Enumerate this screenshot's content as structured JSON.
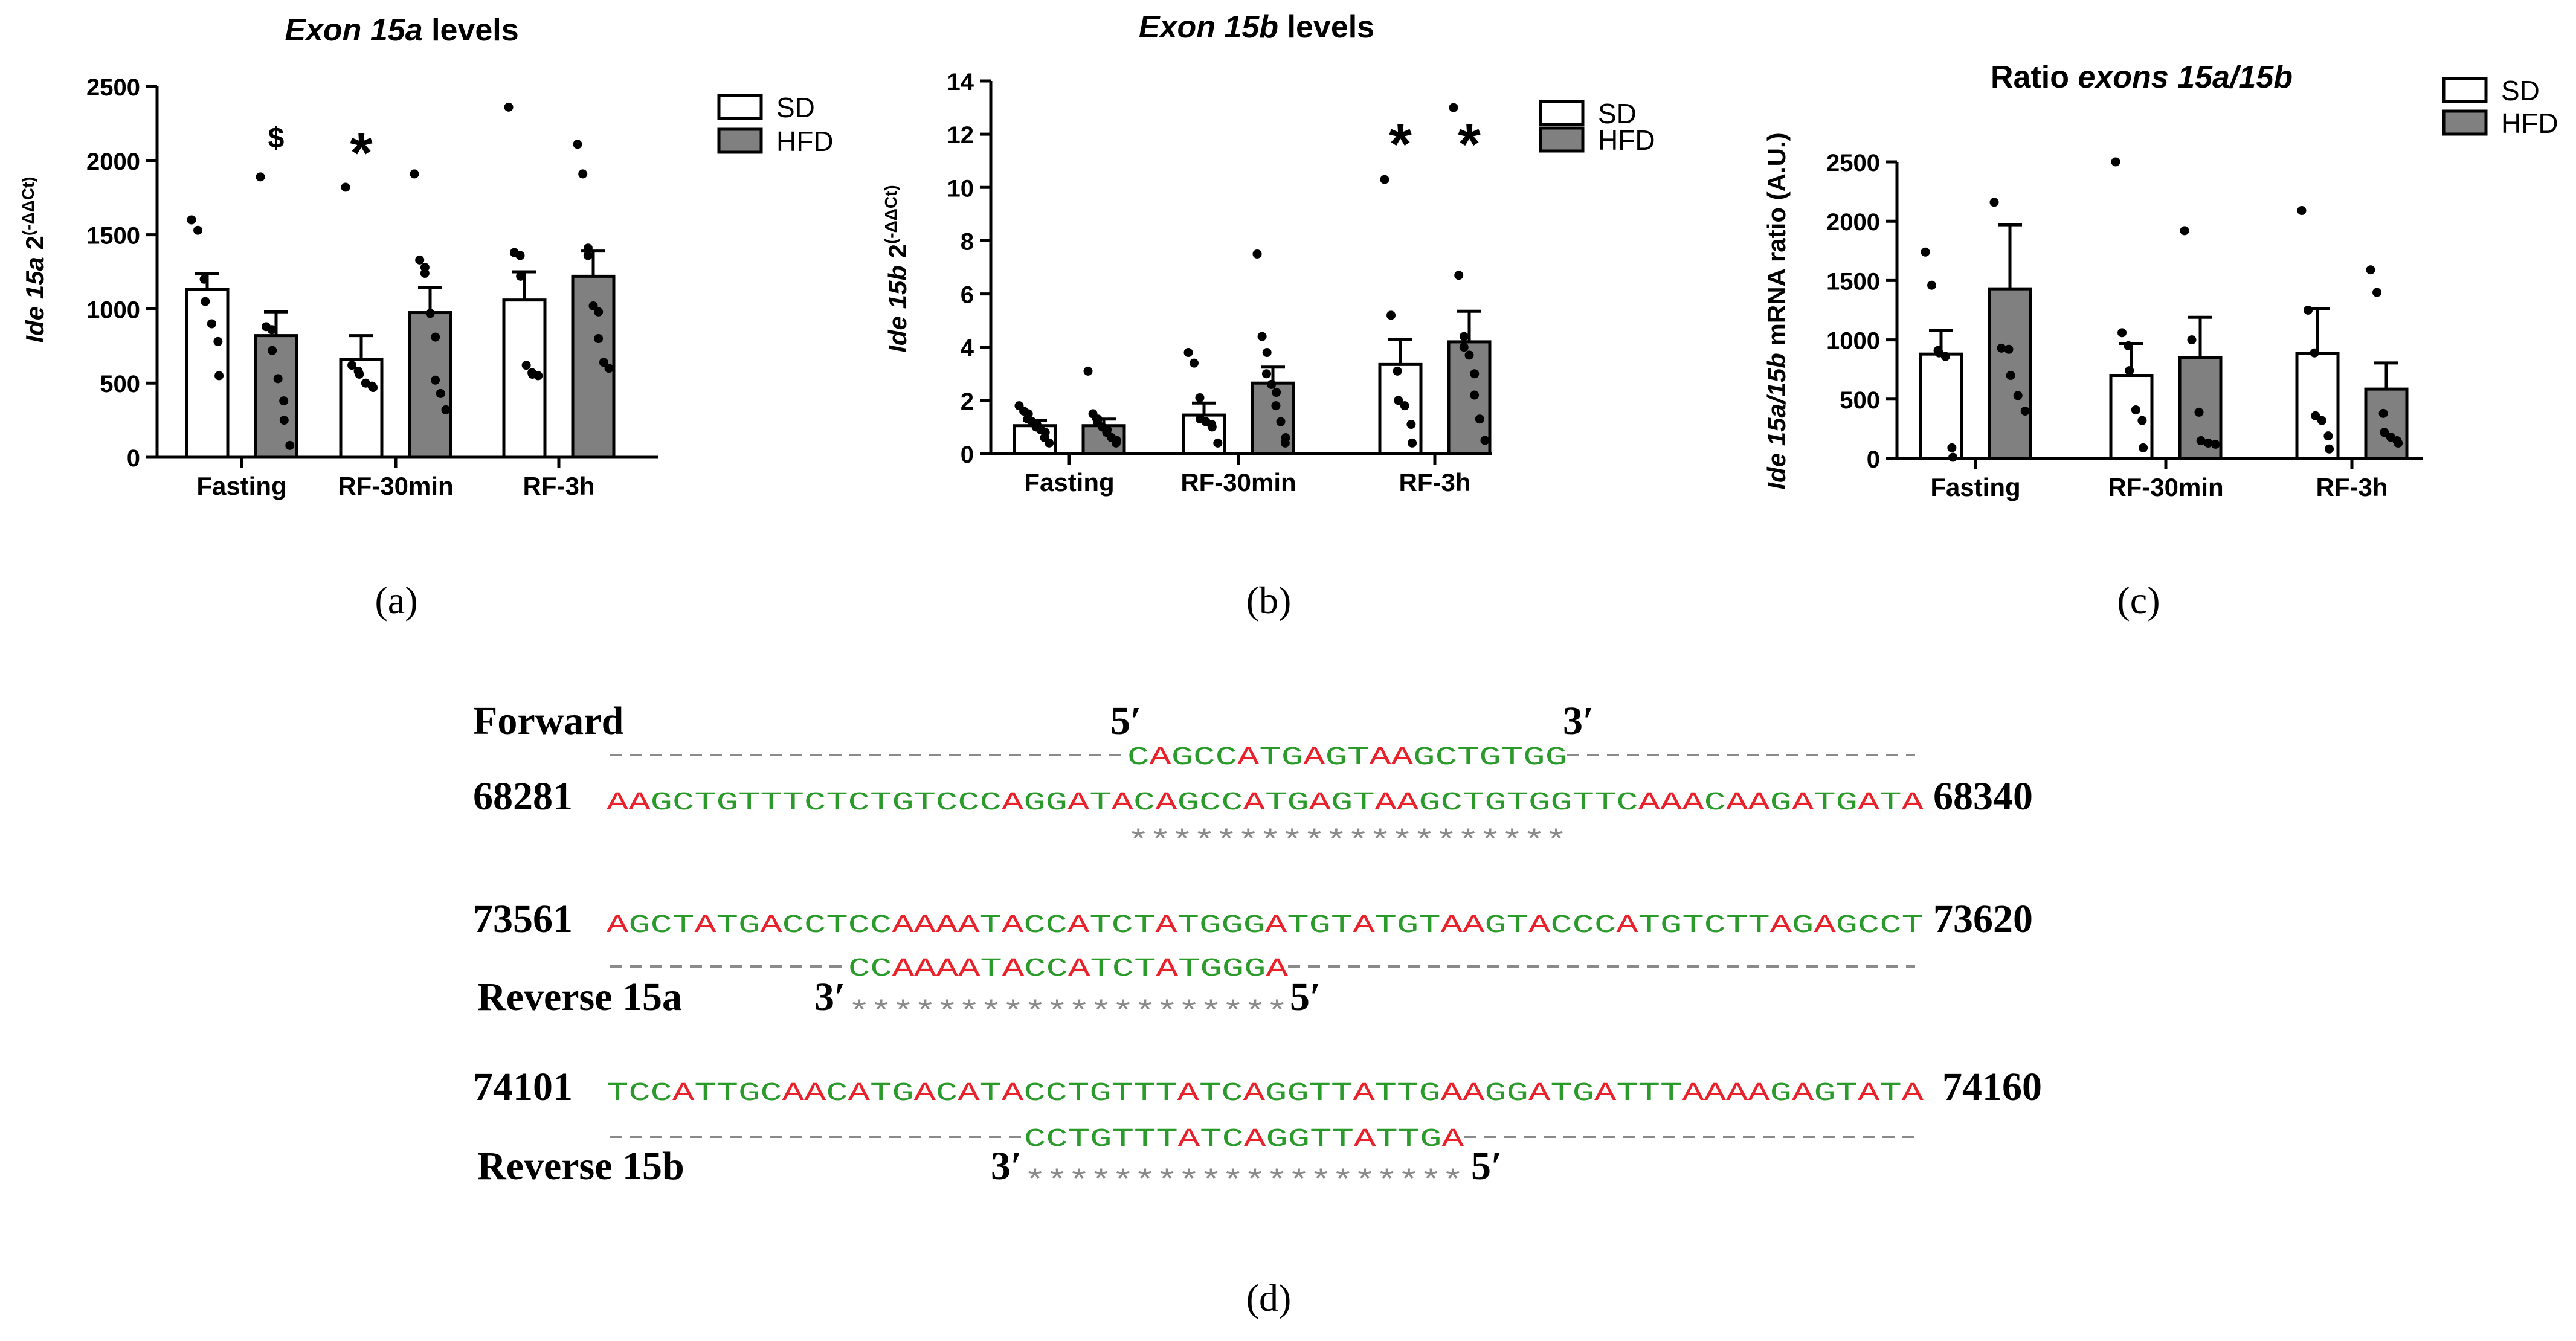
{
  "charts": [
    {
      "panel": "(a)",
      "title_italic": "Exon 15a",
      "title_rest": " levels",
      "ylabel_italic": "Ide 15a",
      "ylabel_rest": " 2",
      "ylabel_sup": "(-ΔΔCt)",
      "legend": [
        "SD",
        "HFD"
      ]
    },
    {
      "panel": "(b)",
      "title_italic": "Exon 15b",
      "title_rest": " levels",
      "ylabel_italic": "Ide 15b",
      "ylabel_rest": " 2",
      "ylabel_sup": "(-ΔΔCt)",
      "legend": [
        "SD",
        "HFD"
      ]
    },
    {
      "panel": "(c)",
      "title_plain": "Ratio ",
      "title_italic": "exons 15a/15b",
      "ylabel_italic": "Ide 15a/15b",
      "ylabel_rest": " mRNA ratio (A.U.)",
      "legend": [
        "SD",
        "HFD"
      ]
    }
  ],
  "chart_data": [
    {
      "type": "bar",
      "categories": [
        "Fasting",
        "RF-30min",
        "RF-3h"
      ],
      "ylim": [
        0,
        2500
      ],
      "yticks": [
        0,
        500,
        1000,
        1500,
        2000,
        2500
      ],
      "series": [
        {
          "name": "SD",
          "color": "#ffffff",
          "values": [
            1130,
            660,
            1060
          ],
          "errors": [
            110,
            160,
            190
          ],
          "points": [
            [
              1600,
              1530,
              1200,
              1050,
              900,
              780,
              550
            ],
            [
              1820,
              620,
              580,
              560,
              500,
              480,
              470
            ],
            [
              2360,
              1380,
              1360,
              1220,
              620,
              570,
              560,
              550
            ]
          ]
        },
        {
          "name": "HFD",
          "color": "#808080",
          "values": [
            820,
            975,
            1220
          ],
          "errors": [
            160,
            170,
            170
          ],
          "points": [
            [
              1890,
              880,
              860,
              720,
              530,
              380,
              250,
              80
            ],
            [
              1910,
              1330,
              1280,
              1240,
              970,
              810,
              520,
              430,
              320
            ],
            [
              2110,
              1910,
              1410,
              1360,
              1020,
              980,
              800,
              640,
              600
            ]
          ]
        }
      ],
      "annotations": [
        {
          "text": "$",
          "category": "Fasting",
          "series": "HFD",
          "y": 2160
        },
        {
          "text": "*",
          "category": "RF-30min",
          "series": "SD",
          "y": 2100
        }
      ]
    },
    {
      "type": "bar",
      "categories": [
        "Fasting",
        "RF-30min",
        "RF-3h"
      ],
      "ylim": [
        0,
        14
      ],
      "yticks": [
        0,
        2,
        4,
        6,
        8,
        10,
        12,
        14
      ],
      "series": [
        {
          "name": "SD",
          "color": "#ffffff",
          "values": [
            1.05,
            1.45,
            3.35
          ],
          "errors": [
            0.2,
            0.45,
            0.95
          ],
          "points": [
            [
              1.8,
              1.6,
              1.5,
              1.3,
              1.2,
              1.1,
              1.0,
              0.9,
              0.8,
              0.6,
              0.4
            ],
            [
              3.8,
              3.4,
              2.1,
              1.3,
              1.2,
              1.1,
              1.0,
              0.4
            ],
            [
              10.3,
              5.2,
              3.1,
              2.0,
              1.8,
              1.1,
              0.4
            ]
          ]
        },
        {
          "name": "HFD",
          "color": "#808080",
          "values": [
            1.05,
            2.65,
            4.2
          ],
          "errors": [
            0.25,
            0.6,
            1.15
          ],
          "points": [
            [
              3.1,
              1.5,
              1.3,
              1.2,
              1.0,
              0.9,
              0.8,
              0.6,
              0.5,
              0.4
            ],
            [
              7.5,
              4.4,
              3.8,
              3.0,
              2.6,
              2.3,
              1.8,
              1.2,
              0.6,
              0.4
            ],
            [
              13.0,
              6.7,
              4.4,
              4.0,
              3.7,
              3.0,
              2.2,
              1.3,
              0.5
            ]
          ]
        }
      ],
      "annotations": [
        {
          "text": "*",
          "category": "RF-3h",
          "series": "SD",
          "y": 11.9
        },
        {
          "text": "*",
          "category": "RF-3h",
          "series": "HFD",
          "y": 11.9
        }
      ]
    },
    {
      "type": "bar",
      "categories": [
        "Fasting",
        "RF-30min",
        "RF-3h"
      ],
      "ylim": [
        0,
        2500
      ],
      "yticks": [
        0,
        500,
        1000,
        1500,
        2000,
        2500
      ],
      "series": [
        {
          "name": "SD",
          "color": "#ffffff",
          "values": [
            880,
            700,
            885
          ],
          "errors": [
            200,
            270,
            380
          ],
          "points": [
            [
              1740,
              1460,
              910,
              890,
              860,
              90,
              10
            ],
            [
              2500,
              1060,
              950,
              740,
              410,
              320,
              90
            ],
            [
              2090,
              1250,
              890,
              360,
              320,
              190,
              80
            ]
          ]
        },
        {
          "name": "HFD",
          "color": "#808080",
          "values": [
            1430,
            850,
            585
          ],
          "errors": [
            540,
            340,
            220
          ],
          "points": [
            [
              2160,
              930,
              920,
              700,
              530,
              400
            ],
            [
              1920,
              1000,
              390,
              150,
              130,
              120
            ],
            [
              1590,
              1400,
              380,
              220,
              180,
              150,
              130
            ]
          ]
        }
      ],
      "annotations": []
    }
  ],
  "sequence": {
    "panel": "(d)",
    "forward": {
      "label": "Forward",
      "five_prime": "5′",
      "three_prime": "3′",
      "primer": "CAGCCATGAGTAAGCTGTGG",
      "genomic_start": "68281",
      "genomic": "AAGCTGTTTCTCTGTCCCAGGATACAGCCATGAGTAAGCTGTGGTTCAAACAAGATGATA",
      "genomic_end": "68340",
      "match": "********************"
    },
    "reverse_a": {
      "label": "Reverse 15a",
      "three_prime": "3′",
      "five_prime": "5′",
      "primer": "CCAAAATACCATCTATGGGA",
      "genomic_start": "73561",
      "genomic": "AGCTATGACCTCCAAAATACCATCTATGGGATGTATGTAAGTACCCATGTCTTAGAGCCT",
      "genomic_end": "73620",
      "match": "********************"
    },
    "reverse_b": {
      "label": "Reverse 15b",
      "three_prime": "3′",
      "five_prime": "5′",
      "primer": "CCTGTTTATCAGGTTATTGA",
      "genomic_start": "74101",
      "genomic": "TCCATTGCAACATGACATACCTGTTTATCAGGTTATTGAAGGATGATTTAAAAGAGTATA",
      "genomic_end": "74160",
      "match": "********************"
    },
    "colors": {
      "purine_red": "#e8212a",
      "other_green": "#2a9a2a",
      "dash": "#8a8a8a"
    }
  }
}
